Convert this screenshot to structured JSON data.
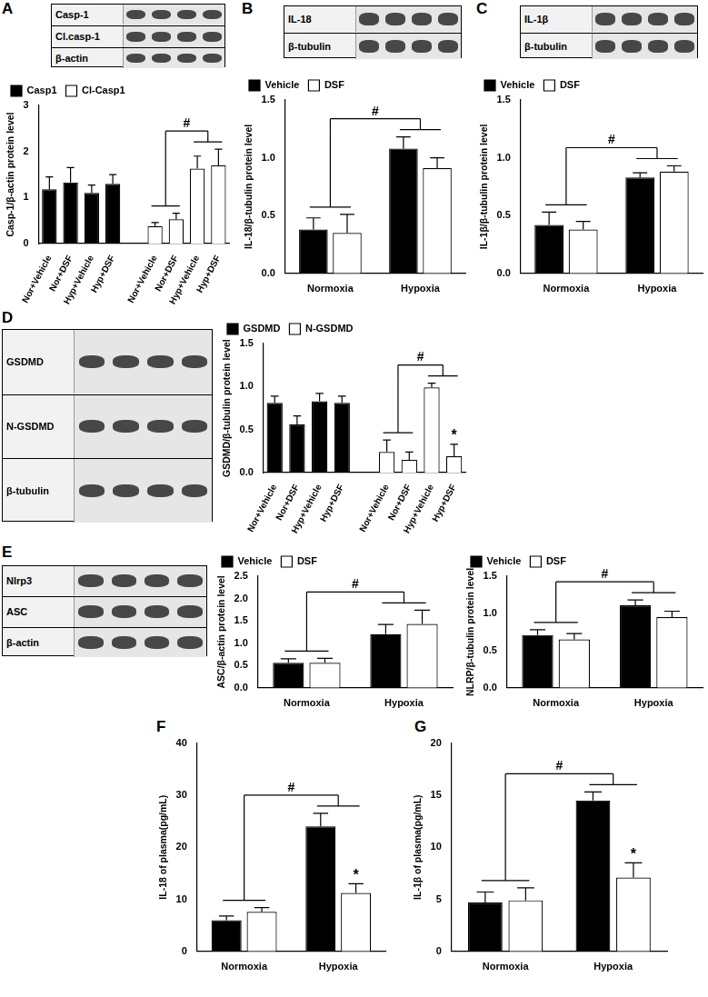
{
  "chart_data": [
    {
      "type": "bar",
      "panel": "A",
      "blot_labels": [
        "Casp-1",
        "Cl.casp-1",
        "β-actin"
      ],
      "y_label": "Casp-1/β-actin protein level",
      "categories": [
        "Nor+Vehicle",
        "Nor+DSF",
        "Hyp+Vehicle",
        "Hyp+DSF",
        null,
        "Nor+Vehicle",
        "Nor+DSF",
        "Hyp+Vehicle",
        "Hyp+DSF"
      ],
      "series": [
        {
          "name": "Casp1",
          "color": "#000000",
          "values": [
            1.18,
            1.33,
            1.1,
            1.3,
            null,
            null,
            null,
            null,
            null
          ],
          "errors": [
            0.27,
            0.32,
            0.17,
            0.2,
            null,
            null,
            null,
            null,
            null
          ]
        },
        {
          "name": "Cl-Casp1",
          "color": "#ffffff",
          "values": [
            null,
            null,
            null,
            null,
            null,
            0.38,
            0.53,
            1.63,
            1.7
          ],
          "errors": [
            null,
            null,
            null,
            null,
            null,
            0.08,
            0.13,
            0.27,
            0.35
          ]
        }
      ],
      "ylim": [
        0,
        3
      ],
      "yticks": [
        0,
        1,
        2,
        3
      ],
      "grid": false,
      "legend": "top",
      "annotations": [
        {
          "text": "#",
          "series": "Cl-Casp1",
          "from": [
            5,
            6
          ],
          "to": [
            7,
            8
          ]
        }
      ]
    },
    {
      "type": "bar",
      "panel": "B",
      "blot_labels": [
        "IL-18",
        "β-tubulin"
      ],
      "y_label": "IL-18/β-tubulin protein level",
      "categories": [
        "Normoxia",
        "Hypoxia"
      ],
      "series": [
        {
          "name": "Vehicle",
          "color": "#000000",
          "values": [
            0.38,
            1.08
          ],
          "errors": [
            0.1,
            0.1
          ]
        },
        {
          "name": "DSF",
          "color": "#ffffff",
          "values": [
            0.35,
            0.91
          ],
          "errors": [
            0.16,
            0.09
          ]
        }
      ],
      "ylim": [
        0,
        1.5
      ],
      "yticks": [
        {
          "value": 0,
          "label": "0.0"
        },
        {
          "value": 0.5,
          "label": "0.5"
        },
        {
          "value": 1,
          "label": "1.0"
        },
        {
          "value": 1.5,
          "label": "1.5"
        }
      ],
      "grid": false,
      "legend": "top",
      "annotations": [
        {
          "text": "#",
          "from": [
            0
          ],
          "to": [
            1
          ]
        }
      ]
    },
    {
      "type": "bar",
      "panel": "C",
      "blot_labels": [
        "IL-1β",
        "β-tubulin"
      ],
      "y_label": "IL-1β/β-tubulin protein level",
      "categories": [
        "Normoxia",
        "Hypoxia"
      ],
      "series": [
        {
          "name": "Vehicle",
          "color": "#000000",
          "values": [
            0.42,
            0.83
          ],
          "errors": [
            0.11,
            0.04
          ]
        },
        {
          "name": "DSF",
          "color": "#ffffff",
          "values": [
            0.38,
            0.88
          ],
          "errors": [
            0.07,
            0.05
          ]
        }
      ],
      "ylim": [
        0,
        1.5
      ],
      "yticks": [
        {
          "value": 0,
          "label": "0.0"
        },
        {
          "value": 0.5,
          "label": "0.5"
        },
        {
          "value": 1,
          "label": "1.0"
        },
        {
          "value": 1.5,
          "label": "1.5"
        }
      ],
      "grid": false,
      "legend": "top",
      "annotations": [
        {
          "text": "#",
          "from": [
            0
          ],
          "to": [
            1
          ]
        }
      ]
    },
    {
      "type": "bar",
      "panel": "D",
      "blot_labels": [
        "GSDMD",
        "N-GSDMD",
        "β-tubulin"
      ],
      "y_label": "GSDMD/β-tubulin protein level",
      "categories": [
        "Nor+Vehicle",
        "Nor+DSF",
        "Hyp+Vehicle",
        "Hyp+DSF",
        null,
        "Nor+Vehicle",
        "Nor+DSF",
        "Hyp+Vehicle",
        "Hyp+DSF"
      ],
      "series": [
        {
          "name": "GSDMD",
          "color": "#000000",
          "values": [
            0.81,
            0.56,
            0.83,
            0.81,
            null,
            null,
            null,
            null,
            null
          ],
          "errors": [
            0.08,
            0.1,
            0.09,
            0.08,
            null,
            null,
            null,
            null,
            null
          ]
        },
        {
          "name": "N-GSDMD",
          "color": "#ffffff",
          "values": [
            null,
            null,
            null,
            null,
            null,
            0.24,
            0.15,
            0.99,
            0.19
          ],
          "errors": [
            null,
            null,
            null,
            null,
            null,
            0.14,
            0.09,
            0.05,
            0.14
          ]
        }
      ],
      "ylim": [
        0,
        1.5
      ],
      "yticks": [
        {
          "value": 0,
          "label": "0.0"
        },
        {
          "value": 0.5,
          "label": "0.5"
        },
        {
          "value": 1,
          "label": "1.0"
        },
        {
          "value": 1.5,
          "label": "1.5"
        }
      ],
      "grid": false,
      "legend": "top",
      "annotations": [
        {
          "text": "#",
          "series": "N-GSDMD",
          "from": [
            5,
            6
          ],
          "to": [
            7,
            8
          ]
        },
        {
          "text": "*",
          "series": "N-GSDMD",
          "category": 8
        }
      ]
    },
    {
      "type": "bar",
      "panel": "E",
      "blot_labels": [
        "Nlrp3",
        "ASC",
        "β-actin"
      ],
      "y_label": "ASC/β-actin protein level",
      "categories": [
        "Normoxia",
        "Hypoxia"
      ],
      "series": [
        {
          "name": "Vehicle",
          "color": "#000000",
          "values": [
            0.56,
            1.2
          ],
          "errors": [
            0.09,
            0.22
          ]
        },
        {
          "name": "DSF",
          "color": "#ffffff",
          "values": [
            0.56,
            1.43
          ],
          "errors": [
            0.1,
            0.31
          ]
        }
      ],
      "ylim": [
        0,
        2.5
      ],
      "yticks": [
        {
          "value": 0,
          "label": "0.0"
        },
        {
          "value": 0.5,
          "label": "0.5"
        },
        {
          "value": 1,
          "label": "1.0"
        },
        {
          "value": 1.5,
          "label": "1.5"
        },
        {
          "value": 2,
          "label": "2.0"
        },
        {
          "value": 2.5,
          "label": "2.5"
        }
      ],
      "grid": false,
      "legend": "top",
      "annotations": [
        {
          "text": "#",
          "from": [
            0
          ],
          "to": [
            1
          ]
        }
      ]
    },
    {
      "type": "bar",
      "y_label": "NLRP/β-tubulin protein level",
      "categories": [
        "Normoxia",
        "Hypoxia"
      ],
      "series": [
        {
          "name": "Vehicle",
          "color": "#000000",
          "values": [
            0.71,
            1.11
          ],
          "errors": [
            0.07,
            0.07
          ]
        },
        {
          "name": "DSF",
          "color": "#ffffff",
          "values": [
            0.65,
            0.95
          ],
          "errors": [
            0.08,
            0.08
          ]
        }
      ],
      "ylim": [
        0,
        1.5
      ],
      "yticks": [
        {
          "value": 0,
          "label": "0.0"
        },
        {
          "value": 0.5,
          "label": "0.5"
        },
        {
          "value": 1,
          "label": "1.0"
        },
        {
          "value": 1.5,
          "label": "1.5"
        }
      ],
      "grid": false,
      "legend": "top",
      "annotations": [
        {
          "text": "#",
          "from": [
            0
          ],
          "to": [
            1
          ]
        }
      ]
    },
    {
      "type": "bar",
      "panel": "F",
      "y_label": "IL-18 of plasma(pg/mL)",
      "categories": [
        "Normoxia",
        "Hypoxia"
      ],
      "series": [
        {
          "name": "Vehicle",
          "color": "#000000",
          "values": [
            6,
            24
          ],
          "errors": [
            0.8,
            2.5
          ]
        },
        {
          "name": "DSF",
          "color": "#ffffff",
          "values": [
            7.6,
            11.2
          ],
          "errors": [
            0.8,
            1.8
          ]
        }
      ],
      "ylim": [
        0,
        40
      ],
      "yticks": [
        0,
        10,
        20,
        30,
        40
      ],
      "grid": false,
      "annotations": [
        {
          "text": "#",
          "from": [
            0
          ],
          "to": [
            1
          ]
        },
        {
          "text": "*",
          "series": "DSF",
          "category": 1
        }
      ]
    },
    {
      "type": "bar",
      "panel": "G",
      "y_label": "IL-1β of plasma(pg/mL)",
      "categories": [
        "Normoxia",
        "Hypoxia"
      ],
      "series": [
        {
          "name": "Vehicle",
          "color": "#000000",
          "values": [
            4.7,
            14.5
          ],
          "errors": [
            1,
            0.8
          ]
        },
        {
          "name": "DSF",
          "color": "#ffffff",
          "values": [
            4.9,
            7.1
          ],
          "errors": [
            1.2,
            1.4
          ]
        }
      ],
      "ylim": [
        0,
        20
      ],
      "yticks": [
        0,
        5,
        10,
        15,
        20
      ],
      "grid": false,
      "annotations": [
        {
          "text": "#",
          "from": [
            0
          ],
          "to": [
            1
          ]
        },
        {
          "text": "*",
          "series": "DSF",
          "category": 1
        }
      ]
    }
  ]
}
